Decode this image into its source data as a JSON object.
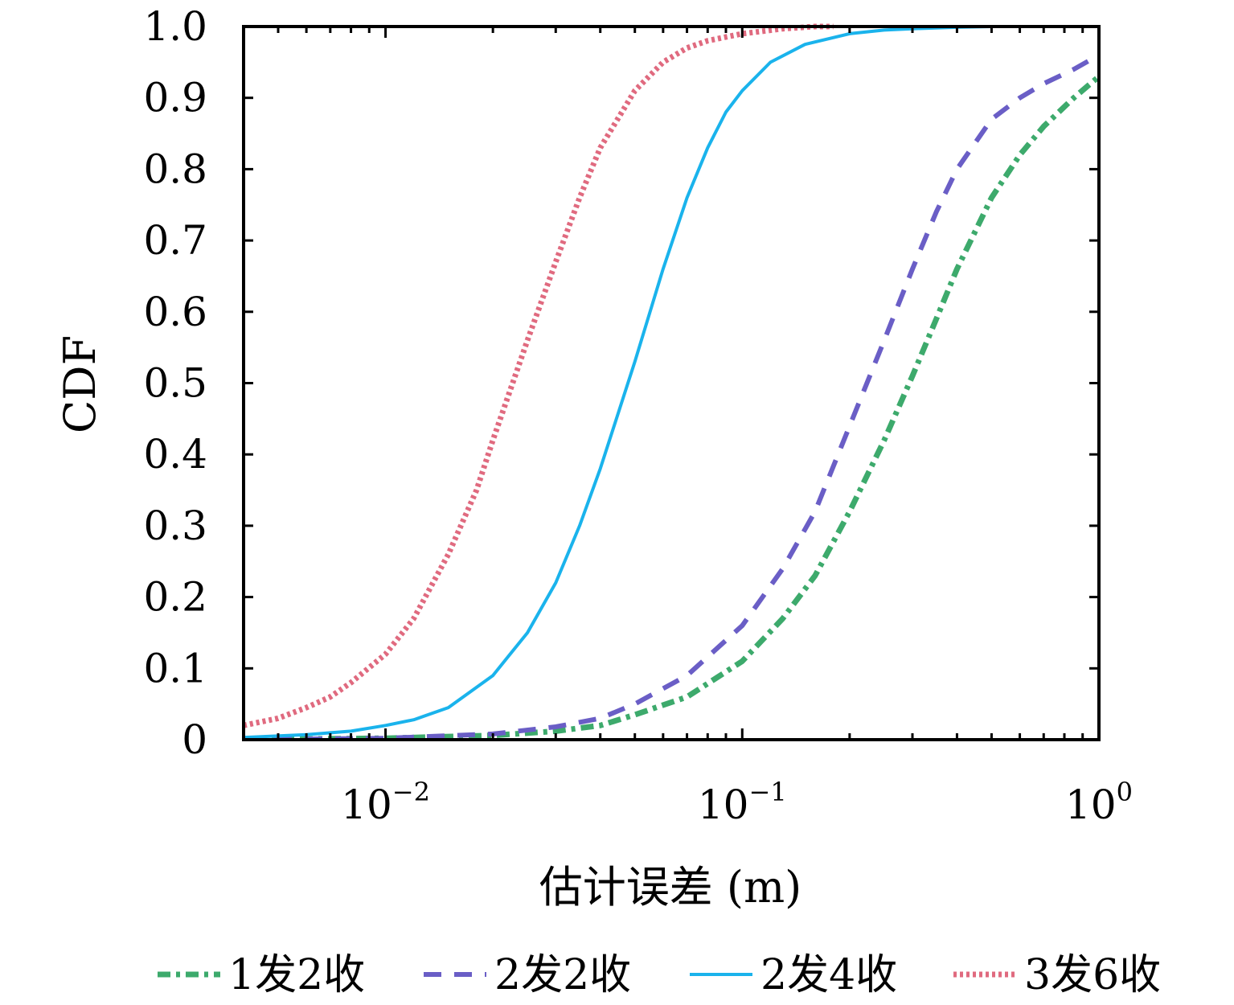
{
  "chart_data": {
    "type": "line",
    "title": "",
    "xlabel": "估计误差 (m)",
    "ylabel": "CDF",
    "xscale": "log",
    "xlim": [
      0.004,
      1.0
    ],
    "ylim": [
      0,
      1.0
    ],
    "grid": false,
    "legend_position": "bottom",
    "y_ticks": [
      {
        "value": 0,
        "label": "0"
      },
      {
        "value": 0.1,
        "label": "0.1"
      },
      {
        "value": 0.2,
        "label": "0.2"
      },
      {
        "value": 0.3,
        "label": "0.3"
      },
      {
        "value": 0.4,
        "label": "0.4"
      },
      {
        "value": 0.5,
        "label": "0.5"
      },
      {
        "value": 0.6,
        "label": "0.6"
      },
      {
        "value": 0.7,
        "label": "0.7"
      },
      {
        "value": 0.8,
        "label": "0.8"
      },
      {
        "value": 0.9,
        "label": "0.9"
      },
      {
        "value": 1.0,
        "label": "1.0"
      }
    ],
    "x_ticks": [
      {
        "value": 0.01,
        "base": "10",
        "exp": "−2"
      },
      {
        "value": 0.1,
        "base": "10",
        "exp": "−1"
      },
      {
        "value": 1.0,
        "base": "10",
        "exp": "0"
      }
    ],
    "series": [
      {
        "name": "1发2收",
        "color": "#3daa6c",
        "style": "dashdot",
        "x": [
          0.004,
          0.01,
          0.02,
          0.03,
          0.04,
          0.05,
          0.07,
          0.1,
          0.13,
          0.16,
          0.2,
          0.25,
          0.3,
          0.35,
          0.4,
          0.5,
          0.6,
          0.7,
          0.85,
          1.0
        ],
        "y": [
          0,
          0.002,
          0.006,
          0.012,
          0.02,
          0.035,
          0.06,
          0.11,
          0.17,
          0.23,
          0.32,
          0.42,
          0.51,
          0.59,
          0.66,
          0.76,
          0.82,
          0.86,
          0.9,
          0.93
        ]
      },
      {
        "name": "2发2收",
        "color": "#6a5ec6",
        "style": "dashed",
        "x": [
          0.004,
          0.01,
          0.02,
          0.03,
          0.04,
          0.05,
          0.07,
          0.1,
          0.13,
          0.16,
          0.2,
          0.25,
          0.3,
          0.35,
          0.4,
          0.5,
          0.6,
          0.7,
          0.85,
          1.0
        ],
        "y": [
          0,
          0.002,
          0.008,
          0.018,
          0.03,
          0.05,
          0.09,
          0.16,
          0.24,
          0.32,
          0.44,
          0.56,
          0.66,
          0.74,
          0.8,
          0.87,
          0.9,
          0.92,
          0.94,
          0.96
        ]
      },
      {
        "name": "2发4收",
        "color": "#1ab3ec",
        "style": "solid",
        "x": [
          0.004,
          0.006,
          0.008,
          0.01,
          0.012,
          0.015,
          0.02,
          0.025,
          0.03,
          0.035,
          0.04,
          0.05,
          0.06,
          0.07,
          0.08,
          0.09,
          0.1,
          0.12,
          0.15,
          0.2,
          0.25,
          0.3,
          0.4,
          0.5,
          1.0
        ],
        "y": [
          0.003,
          0.007,
          0.012,
          0.02,
          0.028,
          0.045,
          0.09,
          0.15,
          0.22,
          0.3,
          0.38,
          0.53,
          0.66,
          0.76,
          0.83,
          0.88,
          0.91,
          0.95,
          0.975,
          0.99,
          0.995,
          0.997,
          0.999,
          1.0,
          1.0
        ]
      },
      {
        "name": "3发6收",
        "color": "#e06a7f",
        "style": "dotted",
        "x": [
          0.004,
          0.005,
          0.006,
          0.007,
          0.008,
          0.01,
          0.012,
          0.015,
          0.018,
          0.02,
          0.025,
          0.03,
          0.035,
          0.04,
          0.05,
          0.06,
          0.07,
          0.08,
          0.1,
          0.13,
          0.16,
          0.18
        ],
        "y": [
          0.02,
          0.03,
          0.045,
          0.06,
          0.08,
          0.12,
          0.17,
          0.26,
          0.35,
          0.42,
          0.56,
          0.67,
          0.76,
          0.83,
          0.91,
          0.95,
          0.97,
          0.98,
          0.99,
          0.997,
          1.0,
          1.0
        ]
      }
    ]
  }
}
